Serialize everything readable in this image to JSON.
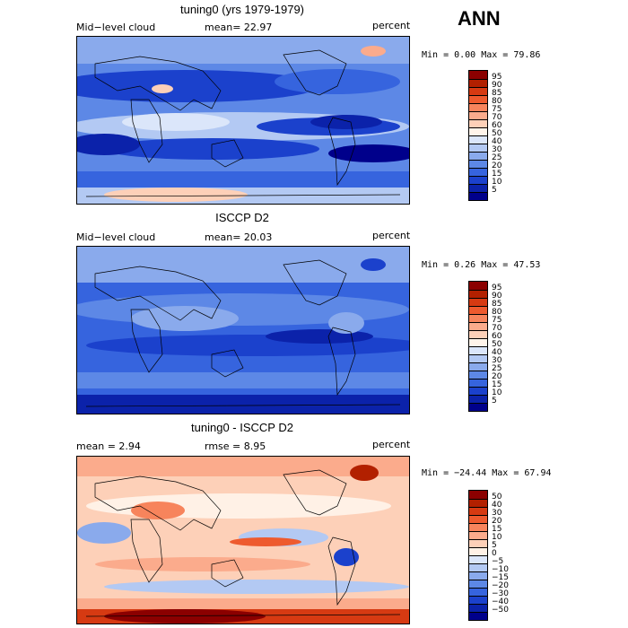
{
  "header": {
    "season": "ANN"
  },
  "panels": [
    {
      "title": "tuning0 (yrs 1979-1979)",
      "left_label": "Mid−level cloud",
      "center_label": "mean=  22.97",
      "units": "percent",
      "stats": "Min =   0.00 Max =  79.86",
      "levels": [
        "95",
        "90",
        "85",
        "80",
        "75",
        "70",
        "60",
        "50",
        "40",
        "30",
        "25",
        "20",
        "15",
        "10",
        "5"
      ],
      "colors": [
        "#8b0000",
        "#b22000",
        "#d63a12",
        "#ee5a2e",
        "#f7845c",
        "#fbab8c",
        "#fdd0b8",
        "#fff4ea",
        "#dbe6fa",
        "#b3c9f3",
        "#8aaaec",
        "#5d88e6",
        "#3664de",
        "#1b41cc",
        "#0b22aa",
        "#00008b"
      ]
    },
    {
      "title": "ISCCP D2",
      "left_label": "Mid−level cloud",
      "center_label": "mean=  20.03",
      "units": "percent",
      "stats": "Min =   0.26 Max =  47.53",
      "levels": [
        "95",
        "90",
        "85",
        "80",
        "75",
        "70",
        "60",
        "50",
        "40",
        "30",
        "25",
        "20",
        "15",
        "10",
        "5"
      ],
      "colors": [
        "#8b0000",
        "#b22000",
        "#d63a12",
        "#ee5a2e",
        "#f7845c",
        "#fbab8c",
        "#fdd0b8",
        "#fff4ea",
        "#dbe6fa",
        "#b3c9f3",
        "#8aaaec",
        "#5d88e6",
        "#3664de",
        "#1b41cc",
        "#0b22aa",
        "#00008b"
      ]
    },
    {
      "title": "tuning0 - ISCCP D2",
      "left_label": "mean =    2.94",
      "center_label": "rmse =    8.95",
      "units": "percent",
      "stats": "Min = −24.44 Max =  67.94",
      "levels": [
        "50",
        "40",
        "30",
        "20",
        "15",
        "10",
        "5",
        "0",
        "−5",
        "−10",
        "−15",
        "−20",
        "−30",
        "−40",
        "−50"
      ],
      "colors": [
        "#8b0000",
        "#b22000",
        "#d63a12",
        "#ee5a2e",
        "#f7845c",
        "#fbab8c",
        "#fdd0b8",
        "#fff1e6",
        "#dbe6fa",
        "#b3c9f3",
        "#8aaaec",
        "#5d88e6",
        "#3664de",
        "#1b41cc",
        "#0b22aa",
        "#00008b"
      ]
    }
  ]
}
